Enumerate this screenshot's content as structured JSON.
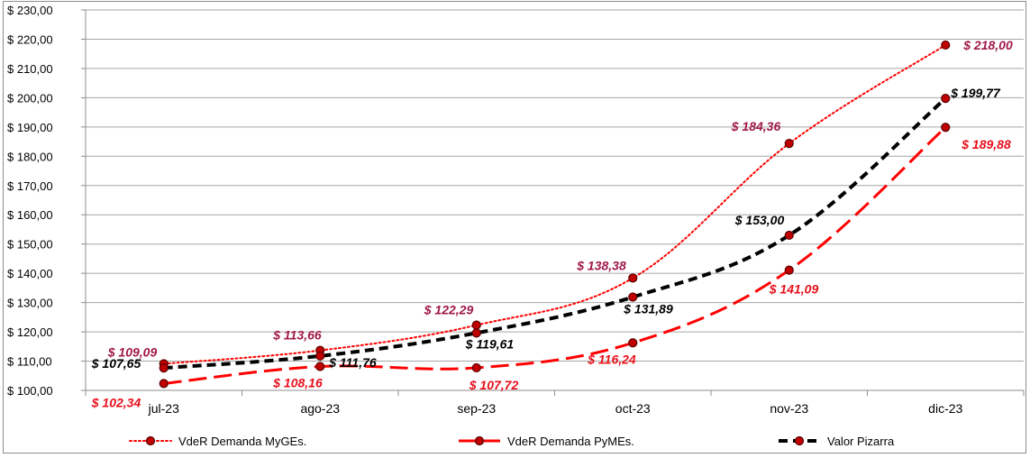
{
  "chart_data": {
    "type": "line",
    "categories": [
      "jul-23",
      "ago-23",
      "sep-23",
      "oct-23",
      "nov-23",
      "dic-23"
    ],
    "ylim": [
      100,
      230
    ],
    "ytick_step": 10,
    "ytick_labels": [
      "$ 100,00",
      "$ 110,00",
      "$ 120,00",
      "$ 130,00",
      "$ 140,00",
      "$ 150,00",
      "$ 160,00",
      "$ 170,00",
      "$ 180,00",
      "$ 190,00",
      "$ 200,00",
      "$ 210,00",
      "$ 220,00",
      "$ 230,00"
    ],
    "grid": "horizontal",
    "legend_position": "bottom",
    "series": [
      {
        "name": "VdeR Demanda MyGEs.",
        "values": [
          109.09,
          113.66,
          122.29,
          138.38,
          184.36,
          218.0
        ],
        "labels": [
          "$ 109,09",
          "$ 113,66",
          "$ 122,29",
          "$ 138,38",
          "$ 184,36",
          "$ 218,00"
        ],
        "color": "#ff0000",
        "label_color": "#a0184a",
        "style": "dotted"
      },
      {
        "name": "VdeR Demanda PyMEs.",
        "values": [
          102.34,
          108.16,
          107.72,
          116.24,
          141.09,
          189.88
        ],
        "labels": [
          "$ 102,34",
          "$ 108,16",
          "$ 107,72",
          "$ 116,24",
          "$ 141,09",
          "$ 189,88"
        ],
        "color": "#ff0000",
        "label_color": "#e8101c",
        "style": "long-dash"
      },
      {
        "name": "Valor Pizarra",
        "values": [
          107.65,
          111.76,
          119.61,
          131.89,
          153.0,
          199.77
        ],
        "labels": [
          "$ 107,65",
          "$ 111,76",
          "$ 119,61",
          "$ 131,89",
          "$ 153,00",
          "$ 199,77"
        ],
        "color": "#000000",
        "label_color": "#000000",
        "style": "dash"
      }
    ]
  }
}
